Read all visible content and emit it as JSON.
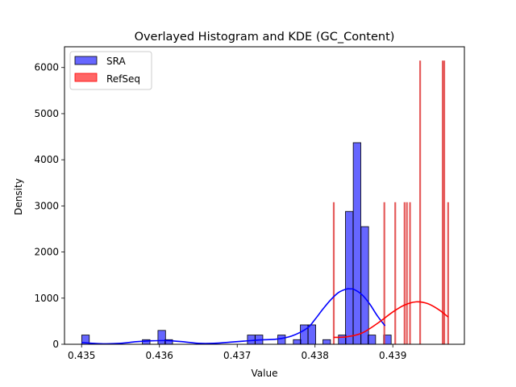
{
  "chart_data": {
    "type": "histogram",
    "title": "Overlayed Histogram and KDE (GC_Content)",
    "xlabel": "Value",
    "ylabel": "Density",
    "xlim": [
      0.43478,
      0.43992
    ],
    "ylim": [
      0,
      6450
    ],
    "xticks": [
      0.435,
      0.436,
      0.437,
      0.438,
      0.439
    ],
    "yticks": [
      0,
      1000,
      2000,
      3000,
      4000,
      5000,
      6000
    ],
    "legend": {
      "placement": "top-left",
      "entries": [
        "SRA",
        "RefSeq"
      ]
    },
    "grid": false,
    "series": [
      {
        "name": "SRA",
        "color": "#0000ff",
        "bin_width": 9.73e-05,
        "bars": [
          {
            "x": 0.43505,
            "y": 200
          },
          {
            "x": 0.43583,
            "y": 100
          },
          {
            "x": 0.43603,
            "y": 300
          },
          {
            "x": 0.43612,
            "y": 100
          },
          {
            "x": 0.43718,
            "y": 200
          },
          {
            "x": 0.43728,
            "y": 200
          },
          {
            "x": 0.43757,
            "y": 200
          },
          {
            "x": 0.43777,
            "y": 100
          },
          {
            "x": 0.43786,
            "y": 420
          },
          {
            "x": 0.43796,
            "y": 420
          },
          {
            "x": 0.43815,
            "y": 100
          },
          {
            "x": 0.43835,
            "y": 200
          },
          {
            "x": 0.43844,
            "y": 2880
          },
          {
            "x": 0.43854,
            "y": 4370
          },
          {
            "x": 0.43864,
            "y": 2550
          },
          {
            "x": 0.43873,
            "y": 200
          },
          {
            "x": 0.43893,
            "y": 200
          }
        ],
        "kde": {
          "x": [
            0.435,
            0.4351,
            0.4353,
            0.4355,
            0.4357,
            0.4359,
            0.4361,
            0.4363,
            0.4365,
            0.4367,
            0.4369,
            0.4371,
            0.4373,
            0.4375,
            0.4377,
            0.4379,
            0.438,
            0.4381,
            0.4382,
            0.4383,
            0.4384,
            0.43845,
            0.4385,
            0.4386,
            0.4387,
            0.4388,
            0.4389
          ],
          "y": [
            40,
            25,
            10,
            20,
            55,
            75,
            80,
            55,
            20,
            20,
            45,
            70,
            95,
            110,
            180,
            350,
            540,
            760,
            960,
            1120,
            1195,
            1200,
            1190,
            1080,
            880,
            620,
            400
          ]
        }
      },
      {
        "name": "RefSeq",
        "color": "#ff0000",
        "bar_color": "#e04040",
        "bars": [
          {
            "x": 0.43824,
            "y": 3080
          },
          {
            "x": 0.43889,
            "y": 3080
          },
          {
            "x": 0.43903,
            "y": 3080
          },
          {
            "x": 0.43915,
            "y": 3080
          },
          {
            "x": 0.43918,
            "y": 3080
          },
          {
            "x": 0.43922,
            "y": 3080
          },
          {
            "x": 0.43935,
            "y": 6150
          },
          {
            "x": 0.43964,
            "y": 6150
          },
          {
            "x": 0.43966,
            "y": 6150
          },
          {
            "x": 0.43971,
            "y": 3080
          }
        ],
        "kde": {
          "x": [
            0.43824,
            0.4384,
            0.4386,
            0.4388,
            0.439,
            0.43915,
            0.4393,
            0.43945,
            0.4396,
            0.43971
          ],
          "y": [
            150,
            160,
            240,
            450,
            700,
            850,
            920,
            880,
            740,
            590
          ]
        }
      }
    ]
  }
}
